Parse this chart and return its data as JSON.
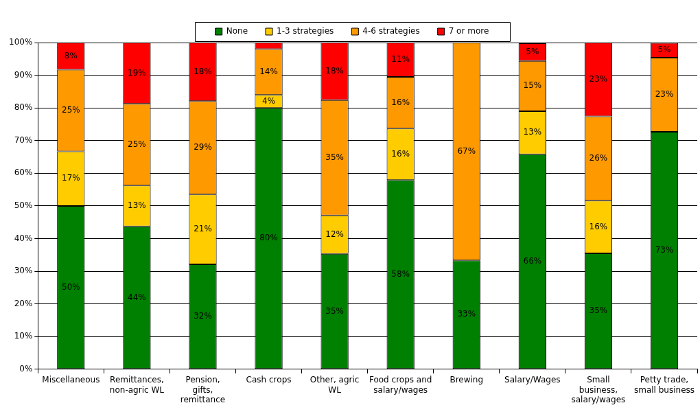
{
  "chart_data": {
    "type": "bar",
    "stacked": true,
    "categories": [
      "Miscellaneous",
      "Remittances, non-agric WL",
      "Pension, gifts, remittance",
      "Cash crops",
      "Other, agric WL",
      "Food crops and salary/wages",
      "Brewing",
      "Salary/Wages",
      "Small business, salary/wages",
      "Petty trade, small business"
    ],
    "series": [
      {
        "name": "None",
        "color": "#008000",
        "values": [
          50,
          43.75,
          32.1,
          80,
          35.3,
          57.9,
          33.3,
          65.8,
          35.5,
          72.7
        ],
        "value_labels": [
          "50%",
          "44%",
          "32%",
          "80%",
          "35%",
          "58%",
          "33%",
          "66%",
          "35%",
          "73%"
        ]
      },
      {
        "name": "1-3 strategies",
        "color": "#ffcc00",
        "values": [
          16.7,
          12.5,
          21.4,
          4,
          11.8,
          15.8,
          0,
          13.2,
          16.1,
          0
        ],
        "value_labels": [
          "17%",
          "13%",
          "21%",
          "4%",
          "12%",
          "16%",
          null,
          "13%",
          "16%",
          null
        ]
      },
      {
        "name": "4-6 strategies",
        "color": "#ff9900",
        "values": [
          25,
          25,
          28.6,
          14,
          35.3,
          15.8,
          66.7,
          15.4,
          25.8,
          22.7
        ],
        "value_labels": [
          "25%",
          "25%",
          "29%",
          "14%",
          "35%",
          "16%",
          "67%",
          "15%",
          "26%",
          "23%"
        ]
      },
      {
        "name": "7 or more",
        "color": "#ff0000",
        "values": [
          8.3,
          18.75,
          17.9,
          2,
          17.6,
          10.5,
          0,
          5.4,
          22.6,
          4.5
        ],
        "value_labels": [
          "8%",
          "19%",
          "18%",
          null,
          "18%",
          "11%",
          null,
          "5%",
          "23%",
          "5%"
        ]
      }
    ],
    "ylim": [
      0,
      100
    ],
    "yticks": [
      {
        "value": 0,
        "label": "0%"
      },
      {
        "value": 10,
        "label": "10%"
      },
      {
        "value": 20,
        "label": "20%"
      },
      {
        "value": 30,
        "label": "30%"
      },
      {
        "value": 40,
        "label": "40%"
      },
      {
        "value": 50,
        "label": "50%"
      },
      {
        "value": 60,
        "label": "60%"
      },
      {
        "value": 70,
        "label": "70%"
      },
      {
        "value": 80,
        "label": "80%"
      },
      {
        "value": 90,
        "label": "90%"
      },
      {
        "value": 100,
        "label": "100%"
      }
    ],
    "grid": "y",
    "legend": "top"
  }
}
